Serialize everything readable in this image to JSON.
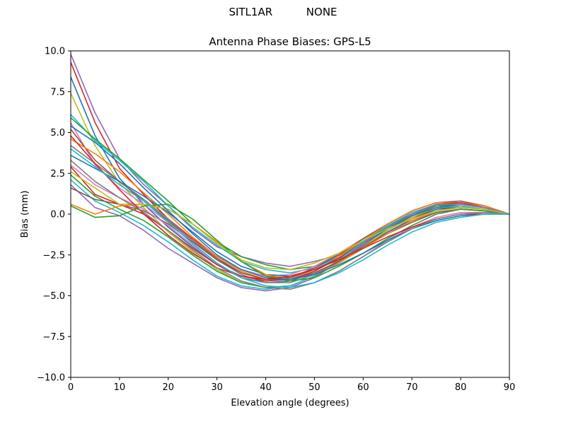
{
  "figure": {
    "suptitle": "SITL1AR          NONE"
  },
  "chart_data": {
    "type": "line",
    "title": "Antenna Phase Biases: GPS-L5",
    "xlabel": "Elevation angle (degrees)",
    "ylabel": "Bias (mm)",
    "xlim": [
      0,
      90
    ],
    "ylim": [
      -10,
      10
    ],
    "xticks": [
      0,
      10,
      20,
      30,
      40,
      50,
      60,
      70,
      80,
      90
    ],
    "xtick_labels": [
      "0",
      "10",
      "20",
      "30",
      "40",
      "50",
      "60",
      "70",
      "80",
      "90"
    ],
    "yticks": [
      10,
      7.5,
      5,
      2.5,
      0,
      -2.5,
      -5,
      -7.5,
      -10
    ],
    "ytick_labels": [
      "10.0",
      "7.5",
      "5.0",
      "2.5",
      "0.0",
      "−2.5",
      "−5.0",
      "−7.5",
      "−10.0"
    ],
    "grid": false,
    "legend": "none",
    "x": [
      0,
      5,
      10,
      15,
      20,
      25,
      30,
      35,
      40,
      45,
      50,
      55,
      60,
      65,
      70,
      75,
      80,
      85,
      90
    ],
    "series": [
      {
        "color": "#9467bd",
        "values": [
          9.8,
          6.2,
          3.4,
          1.8,
          0.5,
          -0.9,
          -2.0,
          -2.6,
          -3.0,
          -3.2,
          -2.9,
          -2.5,
          -1.9,
          -1.1,
          -0.4,
          0.1,
          0.3,
          0.2,
          0.0
        ]
      },
      {
        "color": "#d62728",
        "values": [
          9.3,
          5.6,
          2.8,
          1.2,
          -0.3,
          -1.5,
          -2.6,
          -3.4,
          -3.8,
          -3.9,
          -3.4,
          -2.7,
          -1.8,
          -0.9,
          -0.2,
          0.3,
          0.4,
          0.3,
          0.0
        ]
      },
      {
        "color": "#1f77b4",
        "values": [
          8.4,
          4.8,
          2.2,
          0.6,
          -0.8,
          -2.0,
          -3.1,
          -3.9,
          -4.2,
          -4.1,
          -3.6,
          -2.9,
          -2.0,
          -1.1,
          -0.3,
          0.3,
          0.5,
          0.3,
          0.0
        ]
      },
      {
        "color": "#bcbd22",
        "values": [
          7.4,
          4.2,
          1.9,
          0.4,
          -1.1,
          -2.3,
          -3.4,
          -4.2,
          -4.5,
          -4.4,
          -3.8,
          -3.0,
          -2.0,
          -1.0,
          -0.2,
          0.4,
          0.5,
          0.3,
          0.0
        ]
      },
      {
        "color": "#17becf",
        "values": [
          6.1,
          4.5,
          3.3,
          2.0,
          0.5,
          -0.8,
          -1.9,
          -2.9,
          -3.4,
          -3.6,
          -3.3,
          -2.6,
          -1.7,
          -0.8,
          -0.1,
          0.4,
          0.5,
          0.3,
          0.0
        ]
      },
      {
        "color": "#2ca02c",
        "values": [
          5.9,
          4.6,
          3.4,
          2.1,
          0.8,
          -0.6,
          -1.7,
          -2.6,
          -3.1,
          -3.4,
          -3.2,
          -2.5,
          -1.6,
          -0.7,
          0.0,
          0.5,
          0.6,
          0.4,
          0.0
        ]
      },
      {
        "color": "#e377c2",
        "values": [
          5.6,
          3.0,
          1.6,
          0.6,
          -0.5,
          -1.6,
          -2.6,
          -3.4,
          -3.8,
          -3.7,
          -3.2,
          -2.4,
          -1.5,
          -0.6,
          0.2,
          0.7,
          0.8,
          0.5,
          0.0
        ]
      },
      {
        "color": "#8c564b",
        "values": [
          5.2,
          3.3,
          2.0,
          0.8,
          -0.4,
          -1.6,
          -2.7,
          -3.6,
          -4.0,
          -3.9,
          -3.3,
          -2.5,
          -1.5,
          -0.6,
          0.2,
          0.7,
          0.8,
          0.5,
          0.0
        ]
      },
      {
        "color": "#ff7f0e",
        "values": [
          4.6,
          3.7,
          2.6,
          1.3,
          0.0,
          -1.4,
          -2.6,
          -3.5,
          -4.0,
          -4.0,
          -3.5,
          -2.6,
          -1.6,
          -0.6,
          0.2,
          0.7,
          0.7,
          0.5,
          0.0
        ]
      },
      {
        "color": "#7f7f7f",
        "values": [
          4.2,
          3.1,
          2.0,
          0.9,
          -0.3,
          -1.6,
          -2.8,
          -3.7,
          -4.2,
          -4.2,
          -3.7,
          -2.9,
          -1.9,
          -0.9,
          -0.1,
          0.5,
          0.6,
          0.4,
          0.0
        ]
      },
      {
        "color": "#1f77b4",
        "values": [
          3.6,
          2.8,
          2.0,
          1.1,
          0.1,
          -1.1,
          -2.3,
          -3.2,
          -3.7,
          -3.8,
          -3.4,
          -2.7,
          -1.8,
          -0.9,
          -0.1,
          0.4,
          0.6,
          0.4,
          0.0
        ]
      },
      {
        "color": "#d62728",
        "values": [
          2.9,
          1.2,
          0.6,
          0.0,
          -1.0,
          -2.1,
          -3.1,
          -3.8,
          -4.1,
          -4.0,
          -3.5,
          -2.7,
          -1.7,
          -0.8,
          0.0,
          0.6,
          0.7,
          0.4,
          0.0
        ]
      },
      {
        "color": "#2ca02c",
        "values": [
          2.4,
          1.1,
          0.3,
          -0.4,
          -1.4,
          -2.5,
          -3.5,
          -4.2,
          -4.5,
          -4.4,
          -3.8,
          -2.9,
          -1.8,
          -0.8,
          0.0,
          0.5,
          0.6,
          0.4,
          0.0
        ]
      },
      {
        "color": "#17becf",
        "values": [
          2.1,
          0.8,
          0.1,
          -0.7,
          -1.7,
          -2.8,
          -3.8,
          -4.4,
          -4.6,
          -4.4,
          -3.8,
          -2.8,
          -1.7,
          -0.7,
          0.1,
          0.6,
          0.6,
          0.4,
          0.0
        ]
      },
      {
        "color": "#9467bd",
        "values": [
          1.8,
          0.4,
          -0.1,
          -1.0,
          -2.1,
          -3.0,
          -3.9,
          -4.5,
          -4.7,
          -4.5,
          -3.9,
          -2.9,
          -1.8,
          -0.8,
          0.0,
          0.6,
          0.6,
          0.4,
          0.0
        ]
      },
      {
        "color": "#8c564b",
        "values": [
          1.6,
          0.9,
          0.6,
          0.2,
          -0.6,
          -1.7,
          -2.8,
          -3.6,
          -4.0,
          -4.0,
          -3.6,
          -2.9,
          -2.0,
          -1.2,
          -0.5,
          0.1,
          0.3,
          0.2,
          0.0
        ]
      },
      {
        "color": "#ff7f0e",
        "values": [
          0.6,
          0.0,
          0.5,
          0.6,
          0.3,
          -0.6,
          -1.7,
          -2.9,
          -3.7,
          -4.0,
          -3.7,
          -3.0,
          -2.1,
          -1.2,
          -0.4,
          0.2,
          0.4,
          0.3,
          0.0
        ]
      },
      {
        "color": "#2ca02c",
        "values": [
          0.5,
          -0.2,
          -0.1,
          0.5,
          0.6,
          -0.3,
          -1.6,
          -2.9,
          -3.8,
          -4.1,
          -3.9,
          -3.2,
          -2.4,
          -1.5,
          -0.7,
          0.0,
          0.3,
          0.2,
          0.0
        ]
      },
      {
        "color": "#bcbd22",
        "values": [
          2.6,
          1.6,
          0.6,
          0.6,
          0.3,
          -0.6,
          -1.8,
          -2.8,
          -3.3,
          -3.4,
          -3.0,
          -2.4,
          -1.6,
          -0.9,
          -0.3,
          0.2,
          0.4,
          0.3,
          0.0
        ]
      },
      {
        "color": "#e377c2",
        "values": [
          3.0,
          1.8,
          1.0,
          0.3,
          -0.7,
          -1.9,
          -3.0,
          -3.9,
          -4.4,
          -4.5,
          -4.2,
          -3.5,
          -2.6,
          -1.6,
          -0.8,
          -0.2,
          0.1,
          0.1,
          0.0
        ]
      },
      {
        "color": "#1f77b4",
        "values": [
          5.4,
          4.4,
          3.1,
          1.6,
          0.2,
          -1.2,
          -2.5,
          -3.4,
          -3.9,
          -4.0,
          -3.7,
          -3.1,
          -2.4,
          -1.6,
          -0.9,
          -0.4,
          -0.1,
          0.0,
          0.0
        ]
      },
      {
        "color": "#d62728",
        "values": [
          4.8,
          3.1,
          1.5,
          0.0,
          -1.3,
          -2.4,
          -3.3,
          -3.8,
          -4.0,
          -3.8,
          -3.4,
          -2.8,
          -2.1,
          -1.4,
          -0.8,
          -0.3,
          0.0,
          0.0,
          0.0
        ]
      },
      {
        "color": "#7f7f7f",
        "values": [
          3.3,
          2.0,
          1.0,
          0.1,
          -1.0,
          -2.2,
          -3.3,
          -4.1,
          -4.5,
          -4.6,
          -4.2,
          -3.5,
          -2.6,
          -1.7,
          -0.9,
          -0.3,
          0.0,
          0.1,
          0.0
        ]
      },
      {
        "color": "#17becf",
        "values": [
          4.0,
          2.9,
          1.8,
          0.8,
          -0.5,
          -1.8,
          -3.0,
          -3.9,
          -4.4,
          -4.5,
          -4.2,
          -3.6,
          -2.8,
          -1.9,
          -1.1,
          -0.5,
          -0.2,
          0.0,
          0.0
        ]
      }
    ]
  }
}
